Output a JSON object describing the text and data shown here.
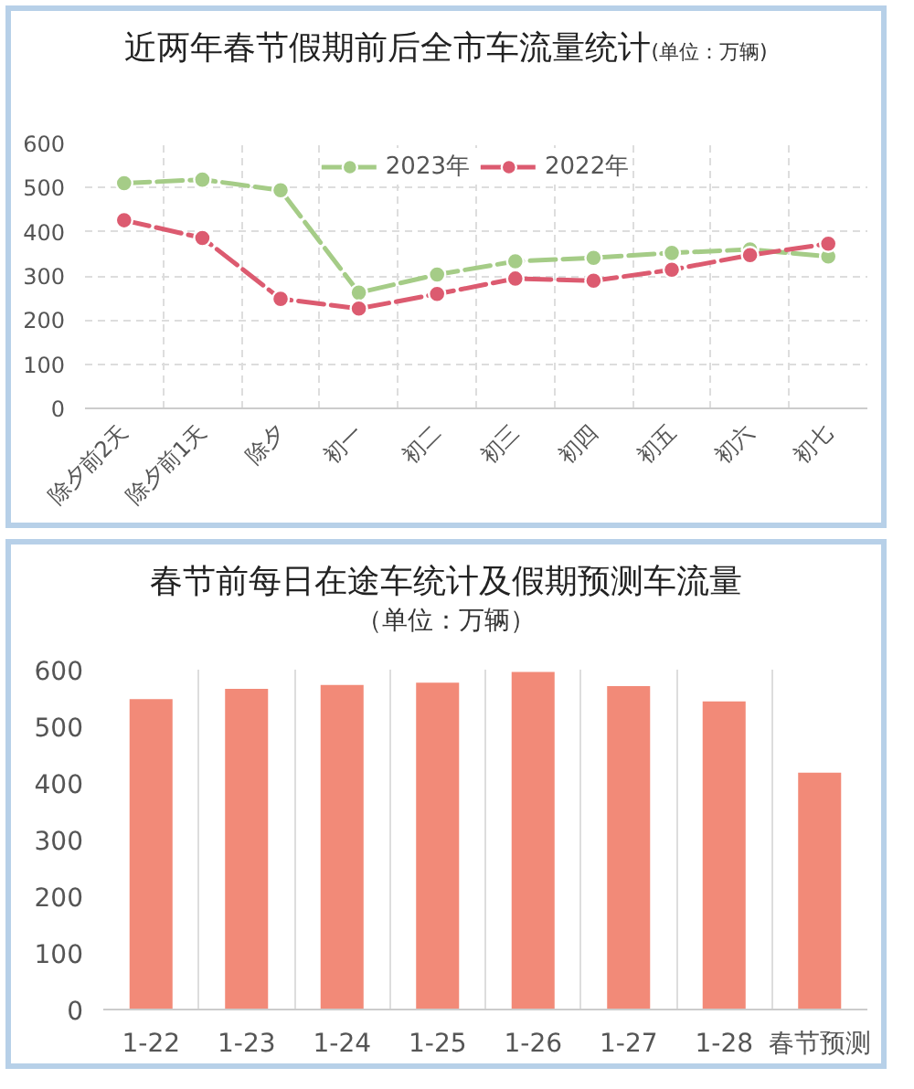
{
  "chart_data": [
    {
      "type": "line",
      "title": "近两年春节假期前后全市车流量统计",
      "subtitle": "(单位：万辆)",
      "categories": [
        "除夕前2天",
        "除夕前1天",
        "除夕",
        "初一",
        "初二",
        "初三",
        "初四",
        "初五",
        "初六",
        "初七"
      ],
      "series": [
        {
          "name": "2023年",
          "color": "#a5cc87",
          "values": [
            510,
            518,
            494,
            262,
            303,
            333,
            341,
            352,
            360,
            344
          ]
        },
        {
          "name": "2022年",
          "color": "#dc5b70",
          "values": [
            426,
            386,
            248,
            226,
            259,
            294,
            289,
            314,
            347,
            373
          ]
        }
      ],
      "ylim": [
        0,
        600
      ],
      "yticks": [
        0,
        100,
        200,
        300,
        400,
        500,
        600
      ],
      "grid": true,
      "legend": "top",
      "marker": "circle",
      "line_style": "dashed"
    },
    {
      "type": "bar",
      "title": "春节前每日在途车统计及假期预测车流量",
      "subtitle": "（单位：万辆）",
      "categories": [
        "1-22",
        "1-23",
        "1-24",
        "1-25",
        "1-26",
        "1-27",
        "1-28",
        "春节预测"
      ],
      "values": [
        548,
        566,
        573,
        577,
        596,
        571,
        544,
        418
      ],
      "color": "#f28a78",
      "ylim": [
        0,
        600
      ],
      "yticks": [
        0,
        100,
        200,
        300,
        400,
        500,
        600
      ],
      "grid": "x"
    }
  ]
}
